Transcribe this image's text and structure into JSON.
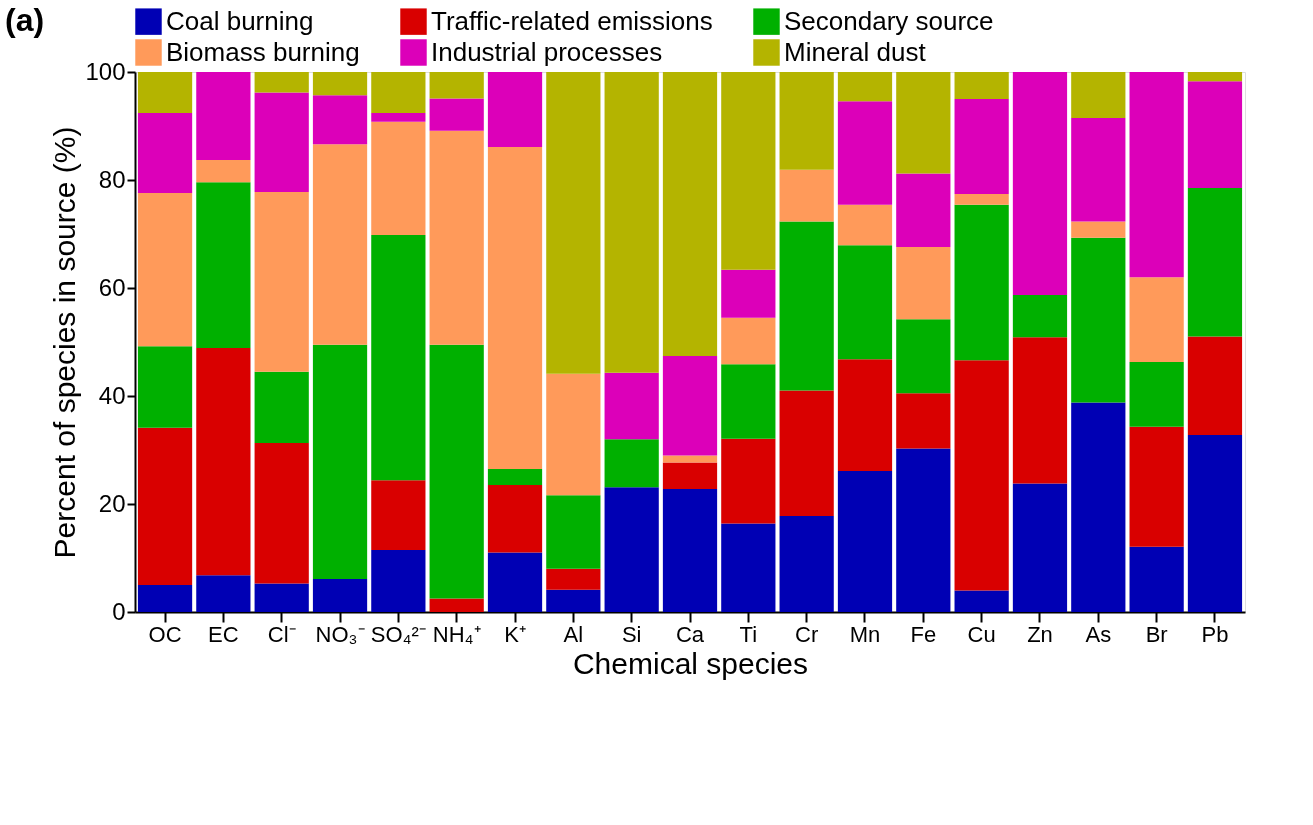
{
  "chart_data": {
    "type": "bar",
    "stacked": true,
    "title": "(a)",
    "xlabel": "Chemical species",
    "ylabel": "Percent of species in source (%)",
    "categories": [
      "OC",
      "EC",
      "Cl⁻",
      "NO₃⁻",
      "SO₄²⁻",
      "NH₄⁺",
      "K⁺",
      "Al",
      "Si",
      "Ca",
      "Ti",
      "Cr",
      "Mn",
      "Fe",
      "Cu",
      "Zn",
      "As",
      "Br",
      "Pb"
    ],
    "ylim": [
      0,
      100
    ],
    "yticks": [
      0,
      20,
      40,
      60,
      80,
      100
    ],
    "grid": false,
    "legend": "top",
    "series": [
      {
        "name": "Coal burning",
        "color": "#0000b4",
        "values": [
          5.0,
          6.8,
          5.3,
          6.1,
          11.5,
          0,
          11.0,
          4.1,
          23.1,
          22.8,
          16.4,
          17.8,
          26.1,
          30.3,
          4.0,
          23.8,
          38.8,
          12.1,
          32.8
        ]
      },
      {
        "name": "Traffic-related emissions",
        "color": "#d90000",
        "values": [
          29.1,
          42.1,
          26.0,
          0,
          12.9,
          2.5,
          12.5,
          3.9,
          0,
          4.9,
          15.7,
          23.2,
          20.7,
          10.2,
          42.6,
          27.1,
          0,
          22.2,
          18.2
        ]
      },
      {
        "name": "Secondary source",
        "color": "#00b000",
        "values": [
          15.1,
          30.7,
          13.2,
          43.4,
          45.4,
          47.0,
          3.0,
          13.6,
          8.9,
          0,
          13.8,
          31.3,
          21.1,
          13.7,
          28.8,
          7.8,
          30.5,
          12.0,
          27.5
        ]
      },
      {
        "name": "Biomass burning",
        "color": "#ff9a5a",
        "values": [
          28.4,
          4.1,
          33.3,
          37.1,
          21.0,
          39.6,
          59.6,
          22.5,
          0,
          1.3,
          8.6,
          9.6,
          7.5,
          13.4,
          2.0,
          0,
          3.0,
          15.7,
          0
        ]
      },
      {
        "name": "Industrial processes",
        "color": "#dc00b9",
        "values": [
          14.8,
          16.3,
          18.4,
          9.1,
          1.6,
          6.0,
          13.9,
          0,
          12.3,
          18.4,
          8.9,
          0,
          19.2,
          13.6,
          17.6,
          41.3,
          19.2,
          38.0,
          19.8
        ]
      },
      {
        "name": "Mineral dust",
        "color": "#b4b400",
        "values": [
          7.6,
          0,
          3.8,
          4.3,
          7.6,
          4.9,
          0,
          55.9,
          55.7,
          52.6,
          36.6,
          18.1,
          5.4,
          18.8,
          5.0,
          0,
          8.5,
          0,
          1.7
        ]
      }
    ]
  }
}
